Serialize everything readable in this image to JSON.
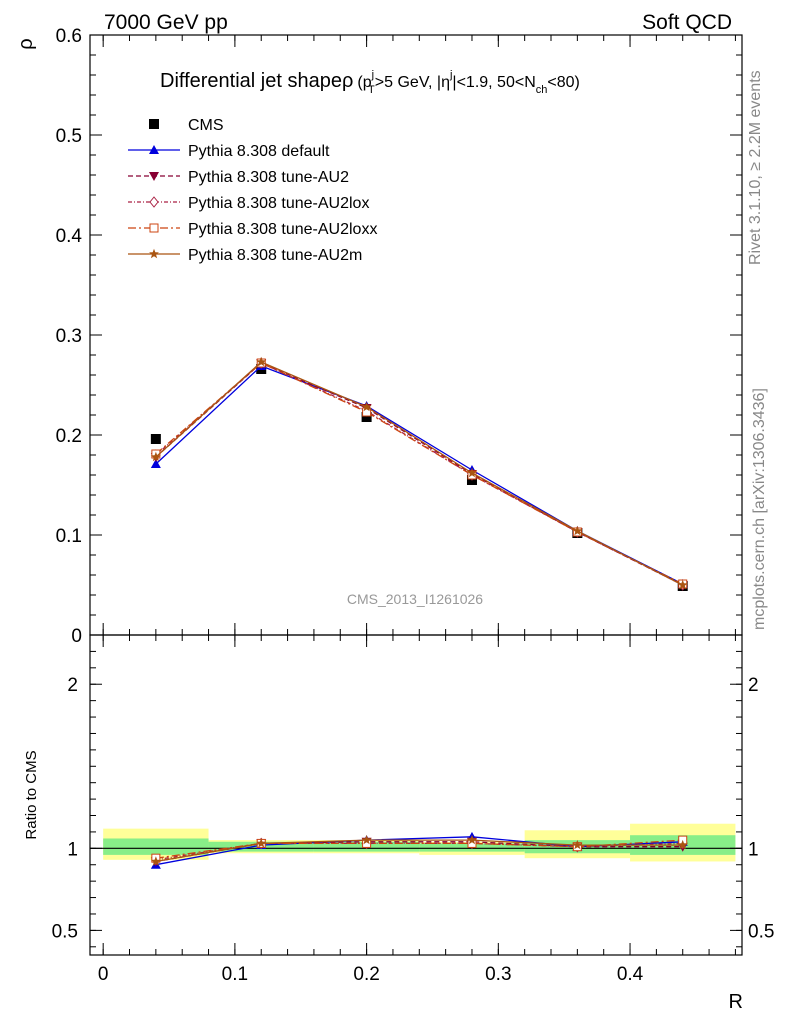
{
  "header": {
    "left": "7000 GeV pp",
    "right": "Soft QCD"
  },
  "side_labels": {
    "rivet": "Rivet 3.1.10, ≥ 2.2M events",
    "mcplots": "mcplots.cern.ch [arXiv:1306.3436]"
  },
  "watermark": "CMS_2013_I1261026",
  "title": {
    "main": "Differential jet shape",
    "rho": "ρ",
    "p": "(p",
    "p_sup": "j",
    "p_sub": "T",
    "cut1": ">5 GeV, |η",
    "eta_sup": "j",
    "cut2": "|<1.9, 50<N",
    "n_sub": "ch",
    "cut3": "<80)"
  },
  "colors": {
    "cms": "#000000",
    "default": "#0000dd",
    "au2": "#880033",
    "au2lox": "#aa2244",
    "au2loxx": "#cc4411",
    "au2m": "#aa5511",
    "band_inner": "#88ee88",
    "band_outer": "#ffff99"
  },
  "chart_data": {
    "type": "line",
    "xlabel": "R",
    "ylabel": "ρ",
    "ratio_ylabel": "Ratio to CMS",
    "xlim": [
      -0.01,
      0.485
    ],
    "ylim": [
      0,
      0.6
    ],
    "ratio_ylim": [
      0.35,
      2.3
    ],
    "x_ticks": [
      0,
      0.1,
      0.2,
      0.3,
      0.4
    ],
    "x_tick_labels": [
      "0",
      "0.1",
      "0.2",
      "0.3",
      "0.4"
    ],
    "y_ticks": [
      0,
      0.1,
      0.2,
      0.3,
      0.4,
      0.5,
      0.6
    ],
    "y_tick_labels": [
      "0",
      "0.1",
      "0.2",
      "0.3",
      "0.4",
      "0.5",
      "0.6"
    ],
    "ratio_ticks": [
      0.5,
      1,
      2
    ],
    "ratio_tick_labels": [
      "0.5",
      "1",
      "2"
    ],
    "legend_position": "top-left",
    "x": [
      0.04,
      0.12,
      0.2,
      0.28,
      0.36,
      0.44
    ],
    "data": {
      "name": "CMS",
      "values": [
        0.196,
        0.266,
        0.218,
        0.155,
        0.102,
        0.049
      ]
    },
    "series": [
      {
        "name": "Pythia 8.308 default",
        "values": [
          0.171,
          0.269,
          0.229,
          0.165,
          0.104,
          0.051
        ],
        "ratio": [
          0.9,
          1.02,
          1.05,
          1.07,
          1.01,
          1.04
        ]
      },
      {
        "name": "Pythia 8.308 tune-AU2",
        "values": [
          0.178,
          0.272,
          0.227,
          0.161,
          0.103,
          0.05
        ],
        "ratio": [
          0.92,
          1.03,
          1.04,
          1.04,
          1.01,
          1.01
        ]
      },
      {
        "name": "Pythia 8.308 tune-AU2lox",
        "values": [
          0.18,
          0.272,
          0.224,
          0.16,
          0.103,
          0.05
        ],
        "ratio": [
          0.93,
          1.03,
          1.03,
          1.03,
          1.01,
          1.03
        ]
      },
      {
        "name": "Pythia 8.308 tune-AU2loxx",
        "values": [
          0.181,
          0.272,
          0.223,
          0.16,
          0.103,
          0.051
        ],
        "ratio": [
          0.94,
          1.03,
          1.03,
          1.03,
          1.01,
          1.05
        ]
      },
      {
        "name": "Pythia 8.308 tune-AU2m",
        "values": [
          0.178,
          0.273,
          0.228,
          0.162,
          0.104,
          0.05
        ],
        "ratio": [
          0.92,
          1.03,
          1.05,
          1.05,
          1.02,
          1.02
        ]
      }
    ],
    "bands": {
      "edges": [
        0.0,
        0.08,
        0.16,
        0.24,
        0.32,
        0.4,
        0.48
      ],
      "inner": [
        [
          0.96,
          1.06
        ],
        [
          0.98,
          1.04
        ],
        [
          0.98,
          1.04
        ],
        [
          0.98,
          1.03
        ],
        [
          0.97,
          1.05
        ],
        [
          0.96,
          1.08
        ]
      ],
      "outer": [
        [
          0.93,
          1.12
        ],
        [
          0.97,
          1.05
        ],
        [
          0.97,
          1.05
        ],
        [
          0.96,
          1.04
        ],
        [
          0.94,
          1.11
        ],
        [
          0.92,
          1.15
        ]
      ]
    }
  }
}
